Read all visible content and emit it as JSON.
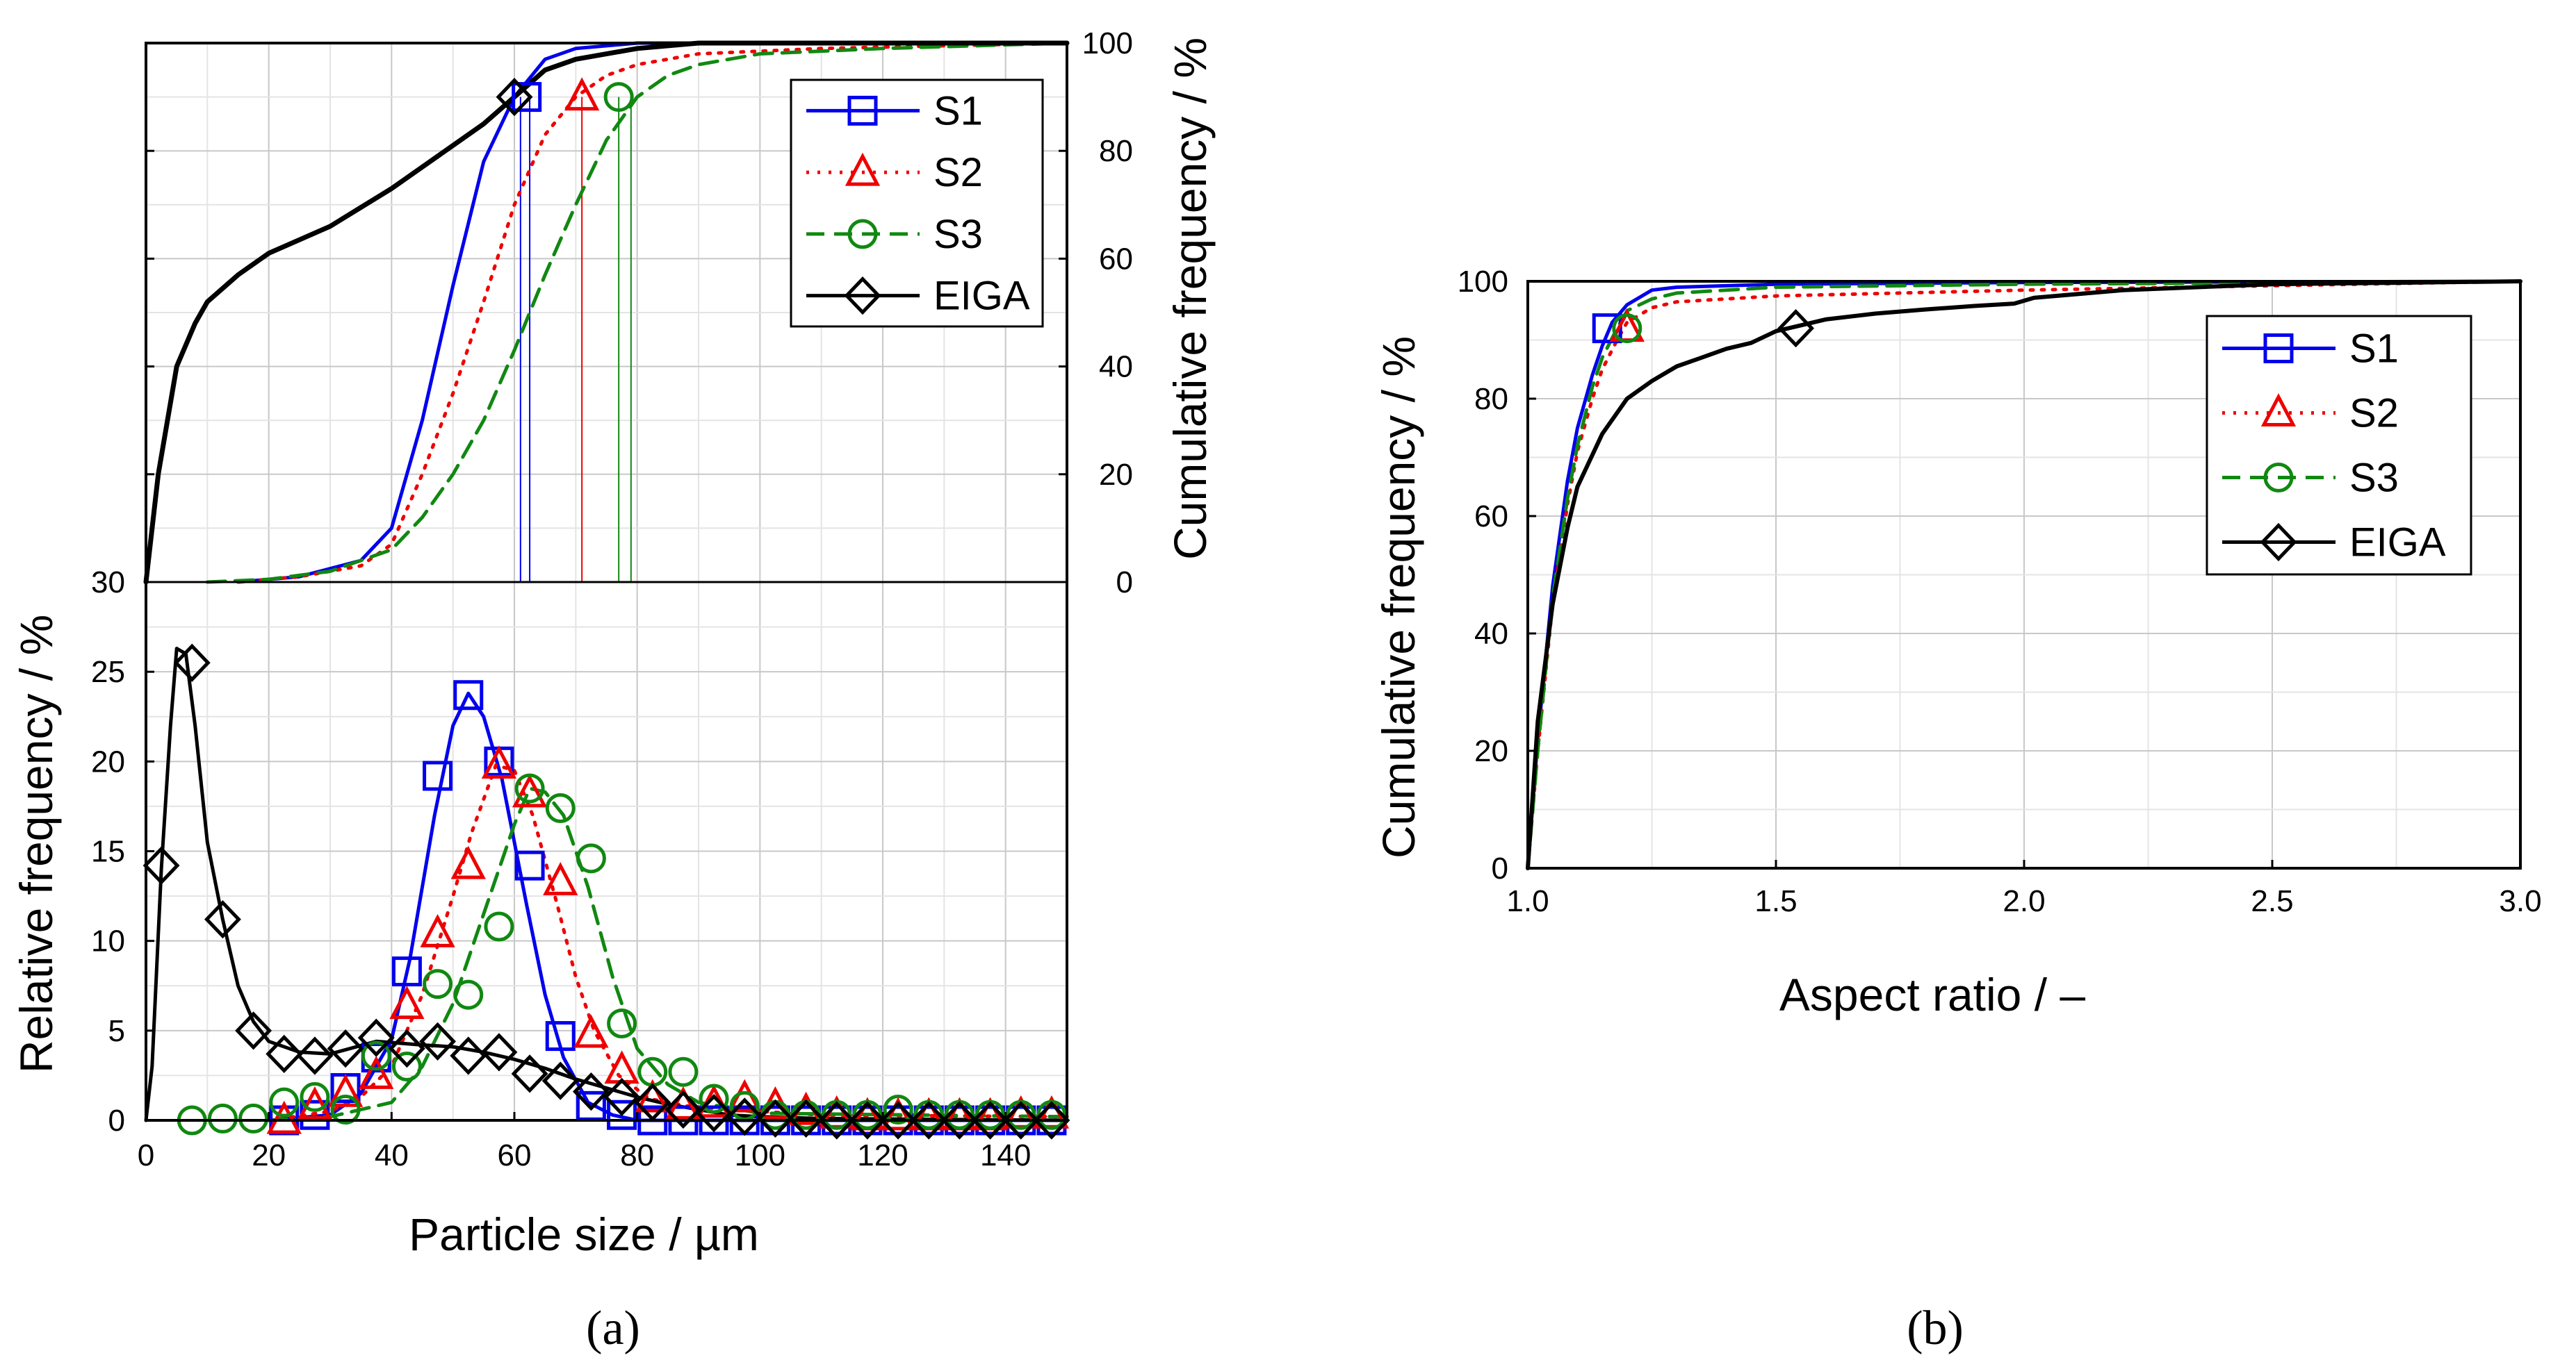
{
  "chart_data": [
    {
      "id": "a_cumulative",
      "type": "line",
      "panel": "a",
      "xlim": [
        0,
        150
      ],
      "ylim": [
        0,
        100
      ],
      "x_ticks": [
        "0",
        "20",
        "40",
        "60",
        "80",
        "100",
        "120",
        "140"
      ],
      "y_ticks": [
        "0",
        "20",
        "40",
        "60",
        "80",
        "100"
      ],
      "extra_tick": "30",
      "ylabel": "Cumulative frequency / %",
      "y_axis_side": "right",
      "series": [
        {
          "name": "S1",
          "color": "#0000ee",
          "dash": "solid",
          "x": [
            15,
            25,
            35,
            40,
            45,
            50,
            55,
            60,
            65,
            70,
            80,
            90,
            150
          ],
          "y": [
            0,
            1,
            4,
            10,
            30,
            55,
            78,
            90,
            97,
            99,
            100,
            100,
            100
          ]
        },
        {
          "name": "S2",
          "color": "#ee0000",
          "dash": "dot",
          "x": [
            15,
            25,
            35,
            40,
            45,
            50,
            55,
            60,
            65,
            70,
            75,
            80,
            90,
            110,
            150
          ],
          "y": [
            0,
            1,
            3,
            7,
            20,
            35,
            52,
            70,
            83,
            90,
            94,
            96,
            98,
            99,
            100
          ]
        },
        {
          "name": "S3",
          "color": "#118811",
          "dash": "dash",
          "x": [
            10,
            20,
            30,
            40,
            45,
            50,
            55,
            60,
            65,
            70,
            75,
            80,
            85,
            90,
            100,
            120,
            150
          ],
          "y": [
            0,
            0.5,
            2,
            6,
            12,
            20,
            30,
            43,
            57,
            70,
            82,
            90,
            94,
            96,
            98,
            99,
            100
          ]
        },
        {
          "name": "EIGA",
          "color": "#000000",
          "dash": "solid",
          "x": [
            0,
            2,
            5,
            8,
            10,
            15,
            20,
            30,
            40,
            50,
            55,
            60,
            65,
            70,
            80,
            90,
            100,
            150
          ],
          "y": [
            0,
            20,
            40,
            48,
            52,
            57,
            61,
            66,
            73,
            81,
            85,
            90,
            95,
            97,
            99,
            100,
            100,
            100
          ]
        }
      ],
      "markers": [
        {
          "series": "S1",
          "x": 62,
          "y": 90
        },
        {
          "series": "S2",
          "x": 71,
          "y": 90
        },
        {
          "series": "S3",
          "x": 77,
          "y": 90
        },
        {
          "series": "EIGA",
          "x": 60,
          "y": 90
        }
      ],
      "vlines": [
        {
          "series": "S1",
          "x": 61
        },
        {
          "series": "S1",
          "x": 62.5
        },
        {
          "series": "S2",
          "x": 71
        },
        {
          "series": "S3",
          "x": 77
        },
        {
          "series": "S3",
          "x": 79
        }
      ]
    },
    {
      "id": "a_relative",
      "type": "line",
      "panel": "a",
      "xlim": [
        0,
        150
      ],
      "ylim": [
        0,
        30
      ],
      "x_ticks": [
        "0",
        "20",
        "40",
        "60",
        "80",
        "100",
        "120",
        "140"
      ],
      "y_ticks": [
        "0",
        "5",
        "10",
        "15",
        "20",
        "25"
      ],
      "xlabel": "Particle size / µm",
      "ylabel": "Relative frequency / %",
      "series": [
        {
          "name": "S1",
          "color": "#0000ee",
          "dash": "solid",
          "marker": "square",
          "x": [
            22.5,
            27.5,
            32.5,
            37.5,
            42.5,
            47.5,
            52.5,
            57.5,
            62.5,
            67.5,
            72.5,
            77.5,
            82.5,
            87.5,
            92.5,
            97.5,
            102.5,
            107.5,
            112.5,
            117.5,
            122.5,
            127.5,
            132.5,
            137.5,
            142.5,
            147.5
          ],
          "y": [
            0,
            0.3,
            1.8,
            3.5,
            8.3,
            19.2,
            23.7,
            20,
            14.2,
            4.7,
            0.8,
            0.3,
            0,
            0,
            0,
            0,
            0,
            0,
            0,
            0,
            0,
            0,
            0,
            0,
            0,
            0
          ]
        },
        {
          "name": "S2",
          "color": "#ee0000",
          "dash": "dot",
          "marker": "triangle",
          "x": [
            22.5,
            27.5,
            32.5,
            37.5,
            42.5,
            47.5,
            52.5,
            57.5,
            62.5,
            67.5,
            72.5,
            77.5,
            82.5,
            87.5,
            92.5,
            97.5,
            102.5,
            107.5,
            112.5,
            117.5,
            122.5,
            127.5,
            132.5,
            137.5,
            142.5,
            147.5
          ],
          "y": [
            0,
            0.8,
            1.5,
            2.5,
            6.4,
            10.4,
            14.2,
            19.8,
            18.2,
            13.3,
            4.8,
            2.8,
            1.2,
            0.8,
            0.9,
            1.2,
            0.8,
            0.5,
            0.3,
            0.2,
            0.2,
            0.2,
            0.2,
            0.2,
            0.3,
            0.3
          ]
        },
        {
          "name": "S3",
          "color": "#118811",
          "dash": "dash",
          "marker": "circle",
          "x": [
            7.5,
            12.5,
            17.5,
            22.5,
            27.5,
            32.5,
            37.5,
            42.5,
            47.5,
            52.5,
            57.5,
            62.5,
            67.5,
            72.5,
            77.5,
            82.5,
            87.5,
            92.5,
            97.5,
            102.5,
            107.5,
            112.5,
            117.5,
            122.5,
            127.5,
            132.5,
            137.5,
            142.5,
            147.5
          ],
          "y": [
            0,
            0.1,
            0.1,
            1,
            1.3,
            0.6,
            3.6,
            3,
            7.6,
            7,
            10.8,
            18.5,
            17.4,
            14.6,
            5.4,
            2.7,
            2.7,
            1.2,
            0.8,
            0.3,
            0.3,
            0.3,
            0.3,
            0.6,
            0.3,
            0.3,
            0.3,
            0.3,
            0.3
          ]
        },
        {
          "name": "EIGA",
          "color": "#000000",
          "dash": "solid",
          "marker": "diamond",
          "x": [
            2.5,
            7.5,
            12.5,
            17.5,
            22.5,
            27.5,
            32.5,
            37.5,
            42.5,
            47.5,
            52.5,
            57.5,
            62.5,
            67.5,
            72.5,
            77.5,
            82.5,
            87.5,
            92.5,
            97.5,
            102.5,
            107.5,
            112.5,
            117.5,
            122.5,
            127.5,
            132.5,
            137.5,
            142.5,
            147.5
          ],
          "y": [
            14.2,
            25.5,
            11.2,
            5,
            3.7,
            3.6,
            4,
            4.6,
            4,
            4.4,
            3.6,
            3.8,
            2.6,
            2.2,
            1.6,
            1.3,
            1,
            0.6,
            0.4,
            0.2,
            0.1,
            0.1,
            0,
            0,
            0,
            0,
            0,
            0,
            0,
            0
          ]
        }
      ],
      "smooth_curves": [
        {
          "series": "S1",
          "x": [
            20,
            30,
            35,
            40,
            43,
            47,
            50,
            52.5,
            55,
            58,
            62,
            65,
            68,
            72,
            76,
            80,
            90,
            150
          ],
          "y": [
            0,
            0.3,
            1.5,
            4.5,
            9,
            17,
            22,
            23.8,
            22.5,
            19,
            12,
            7,
            3.5,
            1,
            0.3,
            0,
            0,
            0
          ]
        },
        {
          "series": "S2",
          "x": [
            20,
            30,
            35,
            40,
            45,
            50,
            53,
            57,
            60,
            63,
            67,
            70,
            73,
            77,
            82,
            88,
            95,
            110,
            150
          ],
          "y": [
            0,
            0.5,
            1.3,
            3,
            7,
            12.5,
            16,
            19.8,
            19.5,
            17,
            12,
            8,
            5,
            2.5,
            1.2,
            0.8,
            0.6,
            0.3,
            0.2
          ]
        },
        {
          "series": "S3",
          "x": [
            20,
            30,
            40,
            45,
            50,
            55,
            60,
            62.5,
            65,
            68,
            72,
            76,
            80,
            85,
            90,
            100,
            150
          ],
          "y": [
            0,
            0.2,
            1,
            3,
            6.5,
            11.5,
            16.5,
            18.5,
            18.3,
            17,
            13,
            8,
            4,
            2,
            1,
            0.4,
            0.2
          ]
        },
        {
          "series": "EIGA",
          "x": [
            0,
            1,
            2.5,
            4,
            5,
            6.5,
            8,
            10,
            12.5,
            15,
            17.5,
            20,
            25,
            30,
            37.5,
            45,
            50,
            55,
            60,
            65,
            70,
            75,
            80,
            85,
            90,
            95,
            100,
            110,
            150
          ],
          "y": [
            0,
            3,
            14,
            22,
            26.3,
            26,
            22,
            15.5,
            11.2,
            7.5,
            5.5,
            4.4,
            3.8,
            3.7,
            4.4,
            4.2,
            4.1,
            3.8,
            3.4,
            2.9,
            2.3,
            1.8,
            1.3,
            0.9,
            0.6,
            0.3,
            0.2,
            0.1,
            0
          ]
        }
      ]
    },
    {
      "id": "b_aspect",
      "type": "line",
      "panel": "b",
      "xlim": [
        1.0,
        3.0
      ],
      "ylim": [
        0,
        100
      ],
      "x_ticks": [
        "1.0",
        "1.5",
        "2.0",
        "2.5",
        "3.0"
      ],
      "y_ticks": [
        "0",
        "20",
        "40",
        "60",
        "80",
        "100"
      ],
      "xlabel": "Aspect ratio / –",
      "ylabel": "Cumulative frequency / %",
      "series": [
        {
          "name": "S1",
          "color": "#0000ee",
          "dash": "solid",
          "x": [
            1.0,
            1.02,
            1.05,
            1.08,
            1.1,
            1.13,
            1.15,
            1.17,
            1.2,
            1.25,
            1.3,
            1.5,
            2.0,
            3.0
          ],
          "y": [
            0,
            22,
            48,
            66,
            75,
            84,
            89,
            93,
            96,
            98.5,
            99,
            99.5,
            99.8,
            100
          ]
        },
        {
          "name": "S2",
          "color": "#ee0000",
          "dash": "dot",
          "x": [
            1.0,
            1.02,
            1.05,
            1.08,
            1.1,
            1.13,
            1.15,
            1.18,
            1.2,
            1.25,
            1.3,
            1.5,
            2.0,
            3.0
          ],
          "y": [
            0,
            20,
            45,
            62,
            71,
            80,
            85,
            90,
            93,
            95.5,
            96.5,
            97.5,
            98.5,
            100
          ]
        },
        {
          "name": "S3",
          "color": "#118811",
          "dash": "dash",
          "x": [
            1.0,
            1.02,
            1.05,
            1.08,
            1.1,
            1.13,
            1.15,
            1.18,
            1.2,
            1.25,
            1.3,
            1.5,
            2.0,
            3.0
          ],
          "y": [
            0,
            20,
            46,
            63,
            72,
            82,
            87,
            92,
            95,
            97,
            98,
            99,
            99.5,
            100
          ]
        },
        {
          "name": "EIGA",
          "color": "#000000",
          "dash": "solid",
          "x": [
            1.0,
            1.02,
            1.05,
            1.08,
            1.1,
            1.15,
            1.2,
            1.25,
            1.3,
            1.35,
            1.4,
            1.45,
            1.5,
            1.55,
            1.6,
            1.7,
            1.8,
            1.9,
            1.98,
            2.02,
            2.2,
            2.5,
            3.0
          ],
          "y": [
            0,
            25,
            45,
            58,
            65,
            74,
            80,
            83,
            85.5,
            87,
            88.5,
            89.5,
            91.5,
            92.5,
            93.5,
            94.5,
            95.2,
            95.8,
            96.2,
            97.2,
            98.5,
            99.5,
            100
          ]
        }
      ],
      "markers": [
        {
          "series": "S1",
          "x": 1.16,
          "y": 92
        },
        {
          "series": "S2",
          "x": 1.2,
          "y": 92
        },
        {
          "series": "S3",
          "x": 1.2,
          "y": 92
        },
        {
          "series": "EIGA",
          "x": 1.54,
          "y": 92
        }
      ]
    }
  ],
  "legend": [
    {
      "name": "S1",
      "color": "#0000ee",
      "dash": "solid",
      "marker": "square"
    },
    {
      "name": "S2",
      "color": "#ee0000",
      "dash": "dot",
      "marker": "triangle"
    },
    {
      "name": "S3",
      "color": "#118811",
      "dash": "dash",
      "marker": "circle"
    },
    {
      "name": "EIGA",
      "color": "#000000",
      "dash": "solid",
      "marker": "diamond"
    }
  ],
  "panel_labels": {
    "a": "(a)",
    "b": "(b)"
  }
}
